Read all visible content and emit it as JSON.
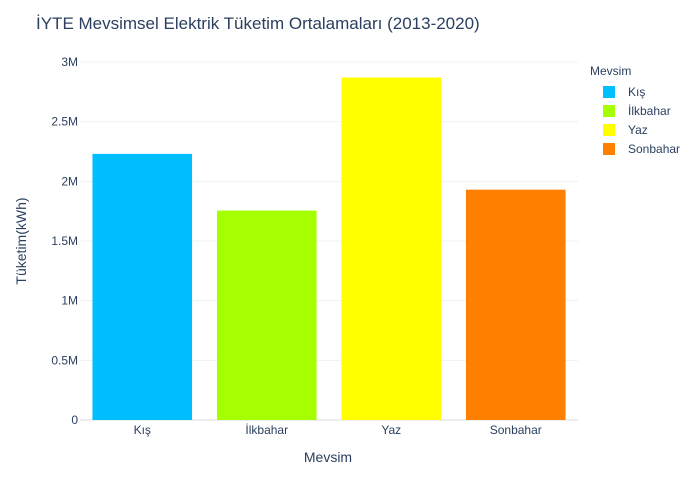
{
  "chart_data": {
    "type": "bar",
    "title": "İYTE Mevsimsel Elektrik Tüketim Ortalamaları (2013-2020)",
    "xlabel": "Mevsim",
    "ylabel": "Tüketim(kWh)",
    "categories": [
      "Kış",
      "İlkbahar",
      "Yaz",
      "Sonbahar"
    ],
    "values": [
      2230000,
      1755000,
      2870000,
      1930000
    ],
    "colors": [
      "#00bfff",
      "#a6ff00",
      "#ffff00",
      "#ff7f00"
    ],
    "ylim": [
      0,
      3000000
    ],
    "yticks": [
      0,
      500000,
      1000000,
      1500000,
      2000000,
      2500000,
      3000000
    ],
    "ytick_labels": [
      "0",
      "0.5M",
      "1M",
      "1.5M",
      "2M",
      "2.5M",
      "3M"
    ],
    "grid": true,
    "legend": {
      "title": "Mevsim",
      "position": "top-right",
      "entries": [
        "Kış",
        "İlkbahar",
        "Yaz",
        "Sonbahar"
      ]
    }
  }
}
